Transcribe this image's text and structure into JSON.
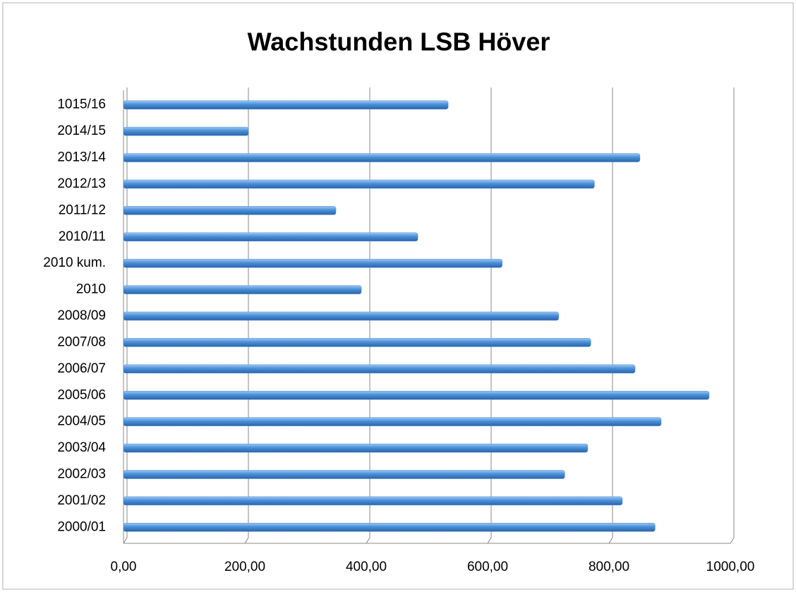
{
  "chart_data": {
    "type": "bar",
    "orientation": "horizontal",
    "title": "Wachstunden LSB Höver",
    "categories": [
      "2000/01",
      "2001/02",
      "2002/03",
      "2003/04",
      "2004/05",
      "2005/06",
      "2006/07",
      "2007/08",
      "2008/09",
      "2010",
      "2010 kum.",
      "2010/11",
      "2011/12",
      "2012/13",
      "2013/14",
      "2014/15",
      "1015/16"
    ],
    "values": [
      876,
      822,
      727,
      765,
      886,
      965,
      843,
      770,
      717,
      392,
      624,
      485,
      350,
      776,
      851,
      206,
      535
    ],
    "color": "#4a8fd8",
    "xlim": [
      0,
      1000
    ],
    "xticks": [
      {
        "value": 0,
        "label": "0,00"
      },
      {
        "value": 200,
        "label": "200,00"
      },
      {
        "value": 400,
        "label": "400,00"
      },
      {
        "value": 600,
        "label": "600,00"
      },
      {
        "value": 800,
        "label": "800,00"
      },
      {
        "value": 1000,
        "label": "1000,00"
      }
    ],
    "grid": true
  }
}
